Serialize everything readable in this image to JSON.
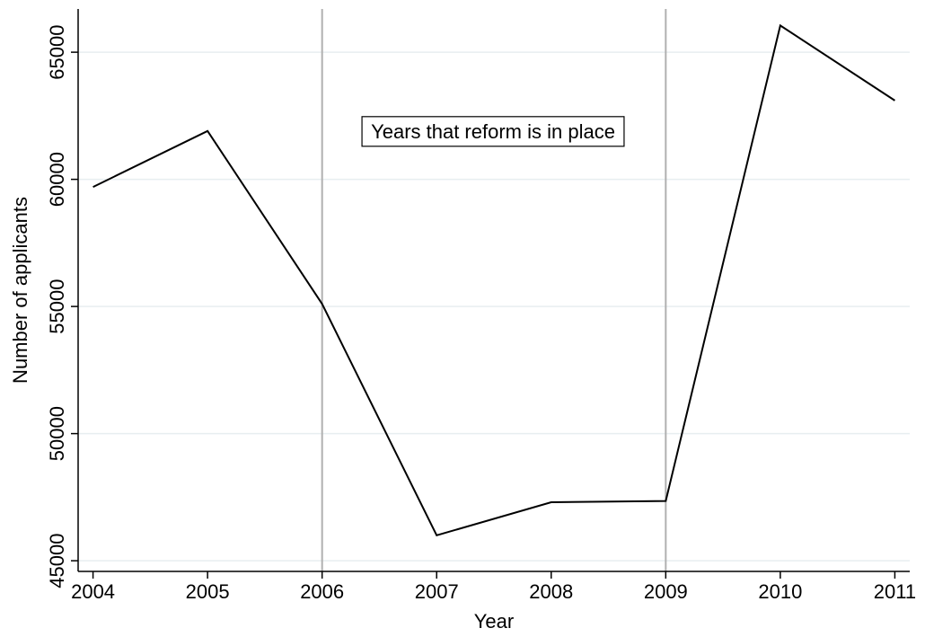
{
  "chart_data": {
    "type": "line",
    "annotation": "Years that reform is in place",
    "x_label": "Year",
    "y_label": "Number of applicants",
    "x": [
      2004,
      2005,
      2006,
      2007,
      2008,
      2009,
      2010,
      2011
    ],
    "series": [
      {
        "color": "#000000",
        "values": [
          59700,
          61900,
          55100,
          46000,
          47300,
          47350,
          66050,
          63100
        ]
      }
    ],
    "reference_lines": [
      2006,
      2009
    ],
    "reference_color": "#b0b0b0",
    "xlim": [
      2003.87,
      2011.13
    ],
    "ylim": [
      44580,
      66700
    ],
    "xticks": [
      2004,
      2005,
      2006,
      2007,
      2008,
      2009,
      2010,
      2011
    ],
    "yticks": [
      45000,
      50000,
      55000,
      60000,
      65000
    ],
    "grid": true
  }
}
